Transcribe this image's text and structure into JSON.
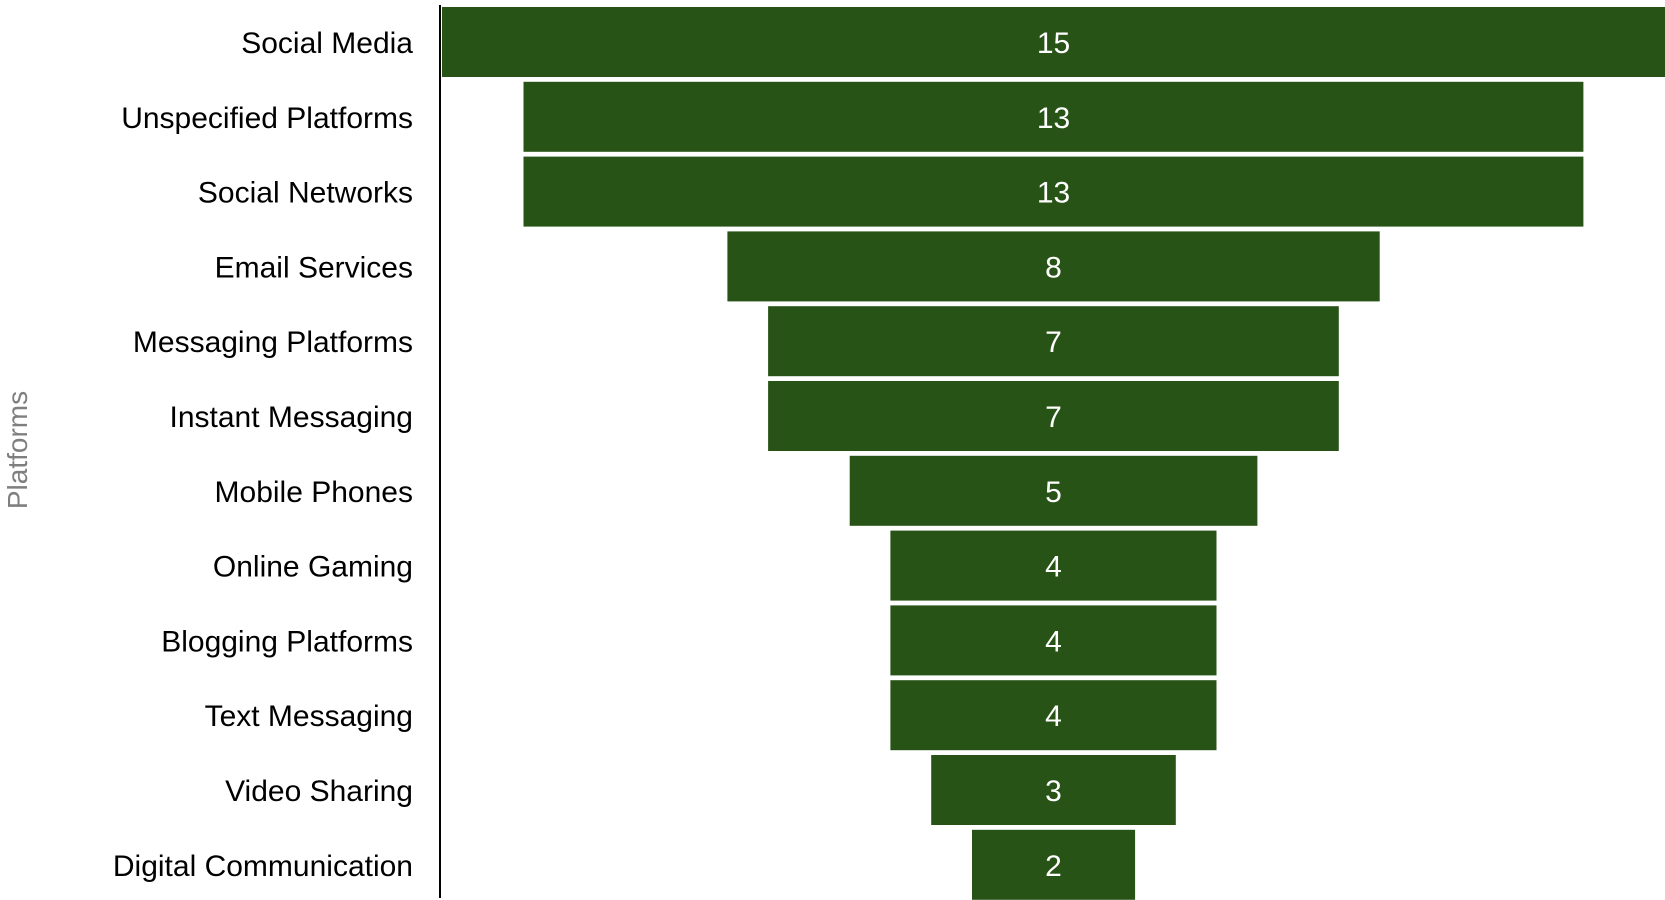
{
  "chart_data": {
    "type": "bar",
    "subtype": "funnel",
    "orientation": "horizontal",
    "ylabel": "Platforms",
    "categories": [
      "Social Media",
      "Unspecified Platforms",
      "Social Networks",
      "Email Services",
      "Messaging Platforms",
      "Instant Messaging",
      "Mobile Phones",
      "Online Gaming",
      "Blogging Platforms",
      "Text Messaging",
      "Video Sharing",
      "Digital Communication"
    ],
    "values": [
      15,
      13,
      13,
      8,
      7,
      7,
      5,
      4,
      4,
      4,
      3,
      2
    ],
    "data_labels": [
      "15",
      "13",
      "13",
      "8",
      "7",
      "7",
      "5",
      "4",
      "4",
      "4",
      "3",
      "2"
    ],
    "grid": false,
    "legend": "none",
    "colors": {
      "bar": "#285316",
      "bar_label": "#ffffff",
      "category_label": "#000000",
      "axis_line": "#000000",
      "axis_title": "#7f7f7f"
    }
  }
}
